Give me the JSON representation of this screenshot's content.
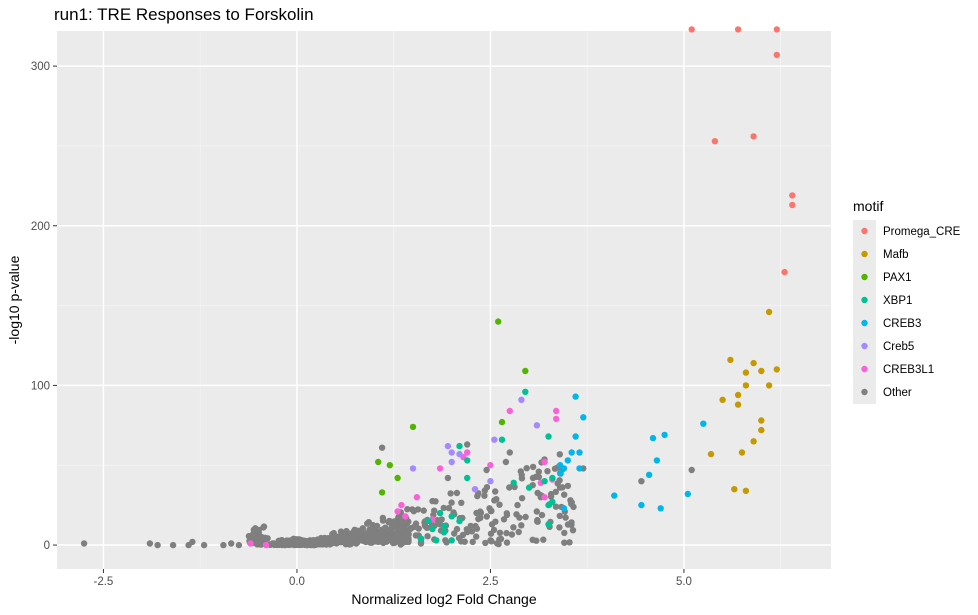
{
  "chart_data": {
    "type": "scatter",
    "title": "run1: TRE Responses to Forskolin",
    "xlabel": "Normalized log2 Fold Change",
    "ylabel": "-log10 p-value",
    "xlim": [
      -3.1,
      6.9
    ],
    "ylim": [
      -15,
      322
    ],
    "x_ticks": [
      -2.5,
      0.0,
      2.5,
      5.0
    ],
    "x_tick_labels": [
      "-2.5",
      "0.0",
      "2.5",
      "5.0"
    ],
    "y_ticks": [
      0,
      100,
      200,
      300
    ],
    "y_tick_labels": [
      "0",
      "100",
      "200",
      "300"
    ],
    "grid": true,
    "legend": {
      "title": "motif",
      "position": "right",
      "entries": [
        {
          "name": "Promega_CRE",
          "color": "#F8766D"
        },
        {
          "name": "Mafb",
          "color": "#C49A00"
        },
        {
          "name": "PAX1",
          "color": "#53B400"
        },
        {
          "name": "XBP1",
          "color": "#00C094"
        },
        {
          "name": "CREB3",
          "color": "#00B6EB"
        },
        {
          "name": "Creb5",
          "color": "#A58AFF"
        },
        {
          "name": "CREB3L1",
          "color": "#FB61D7"
        },
        {
          "name": "Other",
          "color": "#7F7F7F"
        }
      ]
    },
    "series": [
      {
        "name": "Promega_CRE",
        "color": "#F8766D",
        "points": [
          [
            5.1,
            323
          ],
          [
            5.7,
            323
          ],
          [
            6.2,
            323
          ],
          [
            6.2,
            307
          ],
          [
            5.9,
            256
          ],
          [
            5.4,
            253
          ],
          [
            6.4,
            219
          ],
          [
            6.4,
            213
          ],
          [
            6.3,
            171
          ]
        ]
      },
      {
        "name": "Mafb",
        "color": "#C49A00",
        "points": [
          [
            6.1,
            146
          ],
          [
            5.6,
            116
          ],
          [
            5.9,
            114
          ],
          [
            6.2,
            110
          ],
          [
            6.0,
            109
          ],
          [
            5.8,
            108
          ],
          [
            5.7,
            94
          ],
          [
            5.5,
            91
          ],
          [
            5.7,
            88
          ],
          [
            5.8,
            100
          ],
          [
            6.1,
            100
          ],
          [
            6.0,
            78
          ],
          [
            6.0,
            72
          ],
          [
            5.9,
            65
          ],
          [
            5.75,
            58
          ],
          [
            5.35,
            57
          ],
          [
            5.65,
            35
          ],
          [
            5.8,
            34
          ]
        ]
      },
      {
        "name": "PAX1",
        "color": "#53B400",
        "points": [
          [
            2.6,
            140
          ],
          [
            2.95,
            109
          ],
          [
            2.65,
            77
          ],
          [
            1.5,
            74
          ],
          [
            1.05,
            52
          ],
          [
            1.2,
            50
          ],
          [
            1.1,
            33
          ],
          [
            1.3,
            42
          ]
        ]
      },
      {
        "name": "XBP1",
        "color": "#00C094",
        "points": [
          [
            2.95,
            96
          ],
          [
            2.65,
            66
          ],
          [
            2.1,
            62
          ],
          [
            3.25,
            68
          ],
          [
            2.2,
            53
          ],
          [
            2.8,
            39
          ],
          [
            2.2,
            42
          ],
          [
            3.0,
            36
          ],
          [
            3.3,
            42
          ],
          [
            3.2,
            40
          ],
          [
            1.85,
            20
          ],
          [
            2.0,
            18
          ],
          [
            2.1,
            15
          ],
          [
            1.7,
            15
          ],
          [
            1.75,
            10
          ],
          [
            1.9,
            8
          ],
          [
            1.6,
            4
          ],
          [
            1.8,
            3
          ],
          [
            2.0,
            3
          ],
          [
            3.25,
            25
          ],
          [
            3.25,
            13
          ],
          [
            3.3,
            27
          ],
          [
            1.9,
            12
          ]
        ]
      },
      {
        "name": "CREB3",
        "color": "#00B6EB",
        "points": [
          [
            3.6,
            93
          ],
          [
            3.7,
            80
          ],
          [
            3.6,
            68
          ],
          [
            3.55,
            58
          ],
          [
            3.65,
            58
          ],
          [
            3.5,
            53
          ],
          [
            3.45,
            48
          ],
          [
            3.4,
            45
          ],
          [
            3.4,
            50
          ],
          [
            3.65,
            48
          ],
          [
            4.1,
            31
          ],
          [
            4.45,
            25
          ],
          [
            4.55,
            44
          ],
          [
            4.6,
            67
          ],
          [
            4.65,
            53
          ],
          [
            4.7,
            23
          ],
          [
            4.75,
            69
          ],
          [
            5.05,
            32
          ],
          [
            5.25,
            76
          ],
          [
            3.45,
            23
          ]
        ]
      },
      {
        "name": "Creb5",
        "color": "#A58AFF",
        "points": [
          [
            2.9,
            91
          ],
          [
            3.1,
            75
          ],
          [
            2.55,
            66
          ],
          [
            1.95,
            62
          ],
          [
            2.0,
            58
          ],
          [
            2.1,
            57
          ],
          [
            2.5,
            40
          ],
          [
            2.3,
            35
          ],
          [
            1.5,
            48
          ],
          [
            2.0,
            52
          ]
        ]
      },
      {
        "name": "CREB3L1",
        "color": "#FB61D7",
        "points": [
          [
            2.75,
            84
          ],
          [
            3.35,
            84
          ],
          [
            3.35,
            79
          ],
          [
            2.5,
            50
          ],
          [
            3.2,
            52
          ],
          [
            3.3,
            41
          ],
          [
            3.2,
            30
          ],
          [
            3.15,
            39
          ],
          [
            1.85,
            48
          ],
          [
            1.3,
            21
          ],
          [
            1.4,
            18
          ],
          [
            1.75,
            16
          ],
          [
            2.15,
            55
          ],
          [
            2.2,
            58
          ],
          [
            1.55,
            30
          ],
          [
            1.35,
            25
          ],
          [
            -0.6,
            1
          ],
          [
            -0.4,
            0
          ]
        ]
      },
      {
        "name": "Other",
        "color": "#7F7F7F",
        "generated": true
      }
    ]
  }
}
